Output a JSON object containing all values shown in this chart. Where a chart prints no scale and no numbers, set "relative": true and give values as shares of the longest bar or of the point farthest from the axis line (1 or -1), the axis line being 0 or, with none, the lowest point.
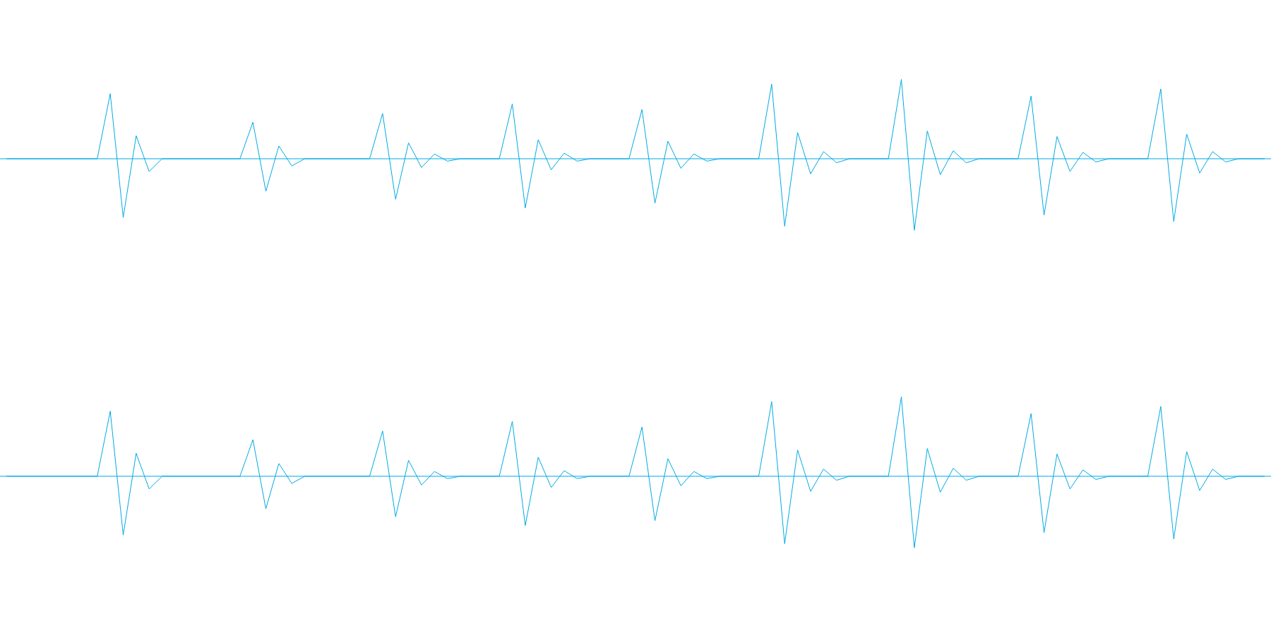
{
  "chart_data": [
    {
      "type": "line",
      "relative": true,
      "tick_labels": false,
      "legend": false,
      "grid": false,
      "marker": "none",
      "line_style": "solid",
      "ref_lines": [
        {
          "axis": "y",
          "value": 0,
          "color": "#00aae4"
        }
      ],
      "categories": [
        null,
        null,
        null,
        null,
        null,
        null,
        null,
        null,
        null,
        null,
        null,
        null,
        null,
        null,
        null,
        null,
        null,
        null,
        null,
        null,
        null,
        null,
        null,
        null,
        null,
        null,
        null,
        null,
        null,
        null,
        null,
        null,
        null,
        null,
        null,
        null,
        null,
        null,
        null,
        null,
        null,
        null,
        null,
        null,
        null,
        null,
        null,
        null,
        null,
        null,
        null,
        null,
        null,
        null,
        null,
        null,
        null,
        null,
        null,
        null,
        null,
        null,
        null,
        null,
        null,
        null,
        null,
        null,
        null,
        null,
        null,
        null,
        null,
        null,
        null,
        null,
        null,
        null,
        null,
        null,
        null,
        null,
        null,
        null,
        null,
        null,
        null,
        null,
        null,
        null,
        null,
        null,
        null,
        null,
        null,
        null,
        null,
        null
      ],
      "series": [
        {
          "color": "#00aae4",
          "values": [
            0,
            0,
            0,
            0,
            0,
            0,
            0,
            0,
            0.82,
            -0.74,
            0.29,
            -0.16,
            0,
            0,
            0,
            0,
            0,
            0,
            0,
            0.46,
            -0.41,
            0.16,
            -0.09,
            0,
            0,
            0,
            0,
            0,
            0,
            0.57,
            -0.51,
            0.2,
            -0.11,
            0.06,
            -0.03,
            0,
            0,
            0,
            0,
            0.69,
            -0.62,
            0.24,
            -0.14,
            0.07,
            -0.03,
            0,
            0,
            0,
            0,
            0.62,
            -0.56,
            0.22,
            -0.12,
            0.06,
            -0.03,
            0,
            0,
            0,
            0,
            0.94,
            -0.85,
            0.33,
            -0.19,
            0.09,
            -0.05,
            0,
            0,
            0,
            0,
            1,
            -0.9,
            0.35,
            -0.2,
            0.1,
            -0.05,
            0,
            0,
            0,
            0,
            0.79,
            -0.71,
            0.28,
            -0.16,
            0.08,
            -0.04,
            0,
            0,
            0,
            0,
            0.88,
            -0.79,
            0.31,
            -0.18,
            0.09,
            -0.04,
            0,
            0,
            0
          ]
        }
      ]
    },
    {
      "type": "line",
      "relative": true,
      "tick_labels": false,
      "legend": false,
      "grid": false,
      "marker": "none",
      "line_style": "solid",
      "ref_lines": [
        {
          "axis": "y",
          "value": 0,
          "color": "#00aae4"
        }
      ],
      "categories": [
        null,
        null,
        null,
        null,
        null,
        null,
        null,
        null,
        null,
        null,
        null,
        null,
        null,
        null,
        null,
        null,
        null,
        null,
        null,
        null,
        null,
        null,
        null,
        null,
        null,
        null,
        null,
        null,
        null,
        null,
        null,
        null,
        null,
        null,
        null,
        null,
        null,
        null,
        null,
        null,
        null,
        null,
        null,
        null,
        null,
        null,
        null,
        null,
        null,
        null,
        null,
        null,
        null,
        null,
        null,
        null,
        null,
        null,
        null,
        null,
        null,
        null,
        null,
        null,
        null,
        null,
        null,
        null,
        null,
        null,
        null,
        null,
        null,
        null,
        null,
        null,
        null,
        null,
        null,
        null,
        null,
        null,
        null,
        null,
        null,
        null,
        null,
        null,
        null,
        null,
        null,
        null,
        null,
        null,
        null,
        null,
        null,
        null
      ],
      "series": [
        {
          "color": "#00aae4",
          "values": [
            0,
            0,
            0,
            0,
            0,
            0,
            0,
            0,
            0.82,
            -0.74,
            0.29,
            -0.16,
            0,
            0,
            0,
            0,
            0,
            0,
            0,
            0.46,
            -0.41,
            0.16,
            -0.09,
            0,
            0,
            0,
            0,
            0,
            0,
            0.57,
            -0.51,
            0.2,
            -0.11,
            0.06,
            -0.03,
            0,
            0,
            0,
            0,
            0.69,
            -0.62,
            0.24,
            -0.14,
            0.07,
            -0.03,
            0,
            0,
            0,
            0,
            0.62,
            -0.56,
            0.22,
            -0.12,
            0.06,
            -0.03,
            0,
            0,
            0,
            0,
            0.94,
            -0.85,
            0.33,
            -0.19,
            0.09,
            -0.05,
            0,
            0,
            0,
            0,
            1,
            -0.9,
            0.35,
            -0.2,
            0.1,
            -0.05,
            0,
            0,
            0,
            0,
            0.79,
            -0.71,
            0.28,
            -0.16,
            0.08,
            -0.04,
            0,
            0,
            0,
            0,
            0.88,
            -0.79,
            0.31,
            -0.18,
            0.09,
            -0.04,
            0,
            0,
            0
          ]
        }
      ]
    }
  ]
}
